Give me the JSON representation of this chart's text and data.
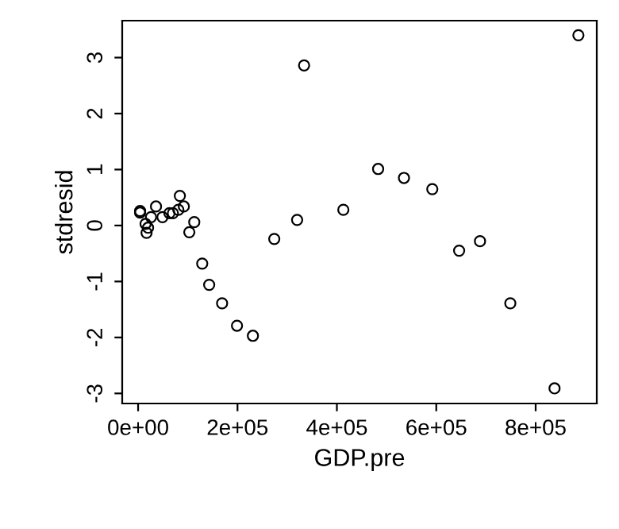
{
  "chart_data": {
    "type": "scatter",
    "xlabel": "GDP.pre",
    "ylabel": "stdresid",
    "marker": "circle",
    "grid": false,
    "legend": false,
    "xlim": [
      -32000,
      923000
    ],
    "ylim": [
      -3.18,
      3.66
    ],
    "xticks": [
      {
        "value": 0,
        "label": "0e+00"
      },
      {
        "value": 200000,
        "label": "2e+05"
      },
      {
        "value": 400000,
        "label": "4e+05"
      },
      {
        "value": 600000,
        "label": "6e+05"
      },
      {
        "value": 800000,
        "label": "8e+05"
      }
    ],
    "yticks": [
      -3,
      -2,
      -1,
      0,
      1,
      2,
      3
    ],
    "series": [
      {
        "color": "#000000",
        "x": [
          4000,
          4000,
          10000,
          15000,
          17000,
          20000,
          23000,
          26000,
          36000,
          49000,
          63000,
          70000,
          81000,
          92000,
          84000,
          113000,
          103000,
          129000,
          143000,
          169000,
          199000,
          231000,
          274000,
          320000,
          334000,
          413000,
          483000,
          535000,
          592000,
          646000,
          688000,
          749000,
          838000,
          886000
        ],
        "values": [
          0.26,
          0.23,
          null,
          0.03,
          -0.13,
          -0.04,
          null,
          0.15,
          0.34,
          0.15,
          0.22,
          0.22,
          0.28,
          0.34,
          0.53,
          0.06,
          -0.12,
          -0.68,
          -1.06,
          -1.39,
          -1.79,
          -1.97,
          -0.24,
          0.1,
          2.86,
          0.28,
          1.01,
          0.85,
          0.65,
          -0.45,
          -0.28,
          -1.39,
          -2.91,
          3.4
        ]
      }
    ]
  }
}
